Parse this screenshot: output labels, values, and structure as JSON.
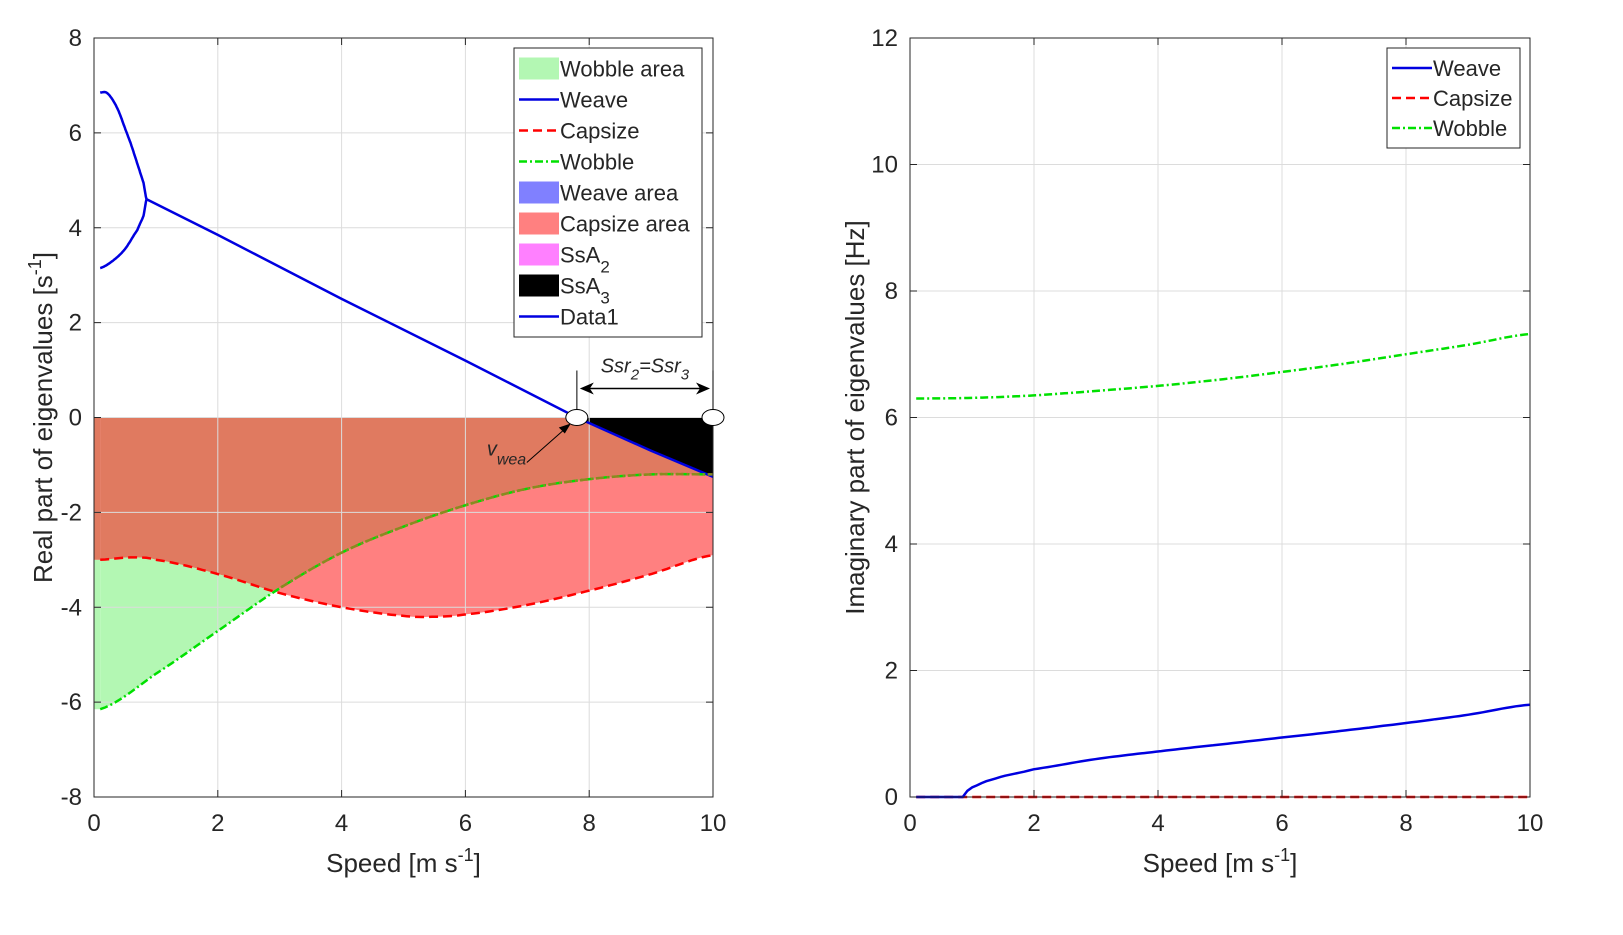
{
  "chart_data": [
    {
      "type": "line",
      "id": "left",
      "xlabel": "Speed [m s",
      "xlabel_sup": "-1",
      "xlabel_end": "]",
      "ylabel": "Real part of eigenvalues [s",
      "ylabel_sup": "-1",
      "ylabel_end": "]",
      "xlim": [
        0,
        10
      ],
      "ylim": [
        -8,
        8
      ],
      "xticks": [
        0,
        2,
        4,
        6,
        8,
        10
      ],
      "yticks": [
        -8,
        -6,
        -4,
        -2,
        0,
        2,
        4,
        6,
        8
      ],
      "grid": true,
      "legend_position": "top-right",
      "legend": [
        {
          "label": "Wobble area",
          "kind": "patch",
          "color": "#b3f7b3"
        },
        {
          "label": "Weave",
          "kind": "line",
          "color": "#0000e0",
          "dash": "solid"
        },
        {
          "label": "Capsize",
          "kind": "line",
          "color": "#ff0000",
          "dash": "dashed"
        },
        {
          "label": "Wobble",
          "kind": "line",
          "color": "#00e000",
          "dash": "dashdot"
        },
        {
          "label": "Weave area",
          "kind": "patch",
          "color": "#8080ff"
        },
        {
          "label": "Capsize area",
          "kind": "patch",
          "color": "#ff8080"
        },
        {
          "label": "SsA",
          "sub": "2",
          "kind": "patch",
          "color": "#ff80ff"
        },
        {
          "label": "SsA",
          "sub": "3",
          "kind": "patch",
          "color": "#000000"
        },
        {
          "label": "Data1",
          "kind": "line",
          "color": "#0000e0",
          "dash": "solid"
        }
      ],
      "series": [
        {
          "name": "Weave upper branch",
          "color": "#0000e0",
          "dash": "solid",
          "x": [
            0.1,
            0.2,
            0.3,
            0.4,
            0.5,
            0.6,
            0.7,
            0.8,
            0.85
          ],
          "y": [
            6.85,
            6.85,
            6.7,
            6.45,
            6.1,
            5.75,
            5.35,
            4.95,
            4.6
          ]
        },
        {
          "name": "Weave lower branch",
          "color": "#0000e0",
          "dash": "solid",
          "x": [
            0.1,
            0.3,
            0.5,
            0.7,
            0.8,
            0.85
          ],
          "y": [
            3.15,
            3.3,
            3.55,
            3.95,
            4.25,
            4.6
          ]
        },
        {
          "name": "Weave",
          "color": "#0000e0",
          "dash": "solid",
          "x": [
            0.85,
            2,
            4,
            6,
            7.8,
            9,
            10
          ],
          "y": [
            4.6,
            3.85,
            2.5,
            1.2,
            0.0,
            -0.7,
            -1.25
          ]
        },
        {
          "name": "Capsize",
          "color": "#ff0000",
          "dash": "dashed",
          "x": [
            0.1,
            0.6,
            1,
            2,
            3,
            4,
            5,
            5.5,
            6,
            7,
            8,
            9,
            10
          ],
          "y": [
            -3.0,
            -2.95,
            -3.0,
            -3.3,
            -3.7,
            -4.0,
            -4.18,
            -4.2,
            -4.15,
            -3.95,
            -3.65,
            -3.3,
            -2.9
          ]
        },
        {
          "name": "Wobble",
          "color": "#00e000",
          "dash": "dashdot",
          "x": [
            0.1,
            1,
            2,
            3,
            4,
            5,
            6,
            7,
            8,
            9,
            10
          ],
          "y": [
            -6.15,
            -5.4,
            -4.5,
            -3.6,
            -2.85,
            -2.3,
            -1.85,
            -1.5,
            -1.3,
            -1.2,
            -1.2
          ]
        }
      ],
      "areas": [
        {
          "name": "Wobble area",
          "color": "#b3f7b3"
        },
        {
          "name": "Capsize area",
          "color": "#ff8080"
        },
        {
          "name": "Overlap area",
          "color": "#e07a60"
        },
        {
          "name": "SsA3",
          "color": "#000000"
        }
      ],
      "annotations": {
        "v_wea": {
          "text": "v",
          "sub": "wea",
          "x": 7.8,
          "y": 0
        },
        "ssr": {
          "text1": "Ssr",
          "sub1": "2",
          "eq": "=",
          "text2": "Ssr",
          "sub2": "3",
          "x_start": 7.8,
          "x_end": 10
        }
      }
    },
    {
      "type": "line",
      "id": "right",
      "xlabel": "Speed [m s",
      "xlabel_sup": "-1",
      "xlabel_end": "]",
      "ylabel": "Imaginary part of eigenvalues [Hz]",
      "xlim": [
        0,
        10
      ],
      "ylim": [
        0,
        12
      ],
      "xticks": [
        0,
        2,
        4,
        6,
        8,
        10
      ],
      "yticks": [
        0,
        2,
        4,
        6,
        8,
        10,
        12
      ],
      "grid": true,
      "legend_position": "top-right",
      "legend": [
        {
          "label": "Weave",
          "kind": "line",
          "color": "#0000e0",
          "dash": "solid"
        },
        {
          "label": "Capsize",
          "kind": "line",
          "color": "#ff0000",
          "dash": "dashed"
        },
        {
          "label": "Wobble",
          "kind": "line",
          "color": "#00e000",
          "dash": "dashdot"
        }
      ],
      "series": [
        {
          "name": "Weave",
          "color": "#0000e0",
          "dash": "solid",
          "x": [
            0.1,
            0.85,
            0.9,
            1.0,
            1.2,
            1.5,
            2,
            3,
            4,
            5,
            6,
            7,
            8,
            9,
            10
          ],
          "y": [
            0,
            0,
            0.08,
            0.15,
            0.24,
            0.33,
            0.44,
            0.6,
            0.72,
            0.83,
            0.94,
            1.05,
            1.17,
            1.3,
            1.46
          ]
        },
        {
          "name": "Capsize",
          "color": "#ff0000",
          "dash": "dashed",
          "x": [
            0.1,
            10
          ],
          "y": [
            0,
            0
          ]
        },
        {
          "name": "Wobble",
          "color": "#00e000",
          "dash": "dashdot",
          "x": [
            0.1,
            1,
            2,
            3,
            4,
            5,
            6,
            7,
            8,
            9,
            10
          ],
          "y": [
            6.3,
            6.31,
            6.35,
            6.42,
            6.5,
            6.6,
            6.72,
            6.85,
            7.0,
            7.15,
            7.32
          ]
        }
      ]
    }
  ]
}
